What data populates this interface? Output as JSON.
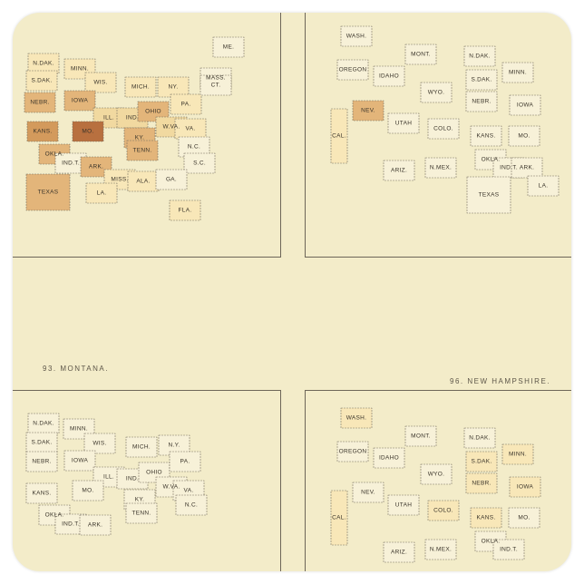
{
  "colors": {
    "paper": "#f3ecc9",
    "light": "#f8e7b8",
    "pale": "#f1d9a0",
    "medium": "#e3b57a",
    "strong": "#d39a5c",
    "dark": "#b8703f",
    "state_fill": "#f7f1d8"
  },
  "titles": {
    "bottom_left": "93. MONTANA.",
    "bottom_right": "96. NEW HAMPSHIRE."
  },
  "panels": {
    "top_left": {
      "labels": [
        "N.DAK.",
        "MINN.",
        "S.DAK.",
        "WIS.",
        "MICH.",
        "NY.",
        "NEBR.",
        "IOWA",
        "ILL.",
        "IND.",
        "OHIO",
        "PA.",
        "KANS.",
        "MO.",
        "KY.",
        "W.VA.",
        "VA.",
        "OKLA.",
        "TENN.",
        "N.C.",
        "IND.T.",
        "ARK.",
        "S.C.",
        "MISS.",
        "ALA.",
        "GA.",
        "TEXAS",
        "LA.",
        "FLA.",
        "ME.",
        "MASS.",
        "CT."
      ]
    },
    "top_right": {
      "labels": [
        "WASH.",
        "MONT.",
        "N.DAK.",
        "MINN.",
        "OREGON",
        "IDAHO",
        "S.DAK.",
        "WYO.",
        "NEBR.",
        "IOWA",
        "NEV.",
        "UTAH",
        "COLO.",
        "KANS.",
        "MO.",
        "CAL.",
        "ARIZ.",
        "N.MEX.",
        "OKLA.",
        "IND.T.",
        "ARK.",
        "TEXAS",
        "LA."
      ]
    },
    "bottom_left": {
      "labels": [
        "N.DAK.",
        "MINN.",
        "S.DAK.",
        "WIS.",
        "MICH.",
        "N.Y.",
        "NEBR.",
        "IOWA",
        "ILL.",
        "IND.",
        "OHIO",
        "PA.",
        "KANS.",
        "MO.",
        "KY.",
        "W.VA.",
        "VA.",
        "OKLA.",
        "TENN.",
        "N.C.",
        "IND.T.",
        "ARK."
      ]
    },
    "bottom_right": {
      "labels": [
        "WASH.",
        "MONT.",
        "N.DAK.",
        "MINN.",
        "OREGON",
        "IDAHO",
        "S.DAK.",
        "WYO.",
        "NEBR.",
        "IOWA",
        "NEV.",
        "UTAH",
        "COLO.",
        "KANS.",
        "MO.",
        "CAL.",
        "ARIZ.",
        "N.MEX.",
        "OKLA.",
        "IND.T."
      ]
    }
  },
  "shading": {
    "top_left": {
      "N.DAK.": "light",
      "MINN.": "light",
      "S.DAK.": "light",
      "WIS.": "light",
      "MICH.": "light",
      "NY.": "light",
      "PA.": "light",
      "NEBR.": "medium",
      "IOWA": "medium",
      "ILL.": "pale",
      "IND.": "pale",
      "OHIO": "medium",
      "KANS.": "strong",
      "MO.": "dark",
      "KY.": "medium",
      "TENN.": "medium",
      "OKLA.": "medium",
      "ARK.": "medium",
      "TEXAS": "medium",
      "W.VA.": "pale",
      "VA.": "light",
      "MISS.": "light",
      "ALA.": "light",
      "LA.": "light",
      "FLA.": "light"
    },
    "top_right": {
      "NEV.": "medium",
      "CAL.": "light"
    },
    "bottom_right": {
      "WASH.": "light",
      "CAL.": "light",
      "S.DAK.": "light",
      "NEBR.": "light",
      "KANS.": "light",
      "COLO.": "light",
      "MINN.": "light",
      "IOWA": "light"
    }
  }
}
